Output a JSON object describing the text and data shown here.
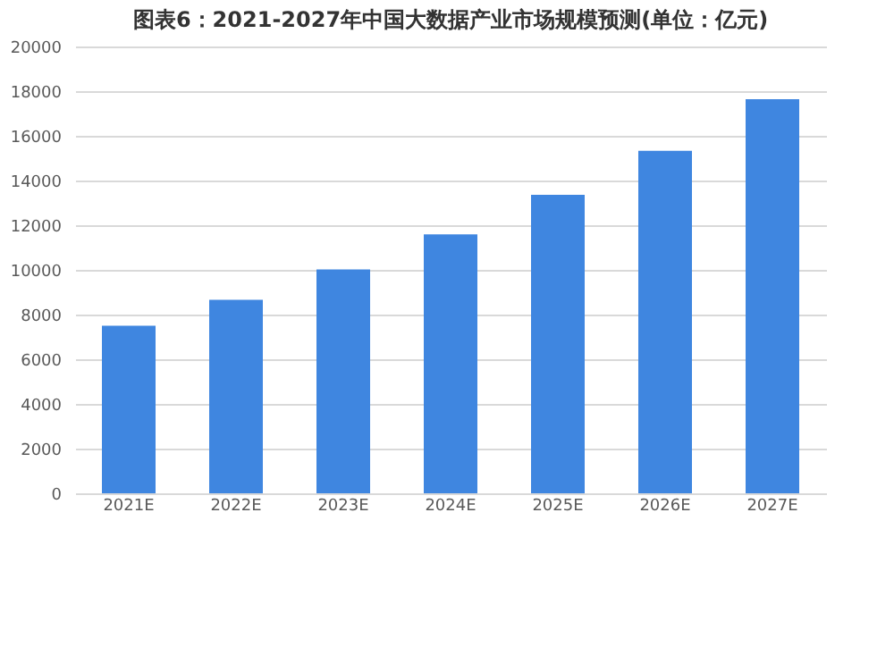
{
  "chart_data": {
    "type": "bar",
    "title": "图表6：2021-2027年中国大数据产业市场规模预测(单位：亿元)",
    "categories": [
      "2021E",
      "2022E",
      "2023E",
      "2024E",
      "2025E",
      "2026E",
      "2027E"
    ],
    "values": [
      7500,
      8660,
      10020,
      11590,
      13360,
      15330,
      17640
    ],
    "color": "#3f86e0",
    "ylim": [
      0,
      20000
    ],
    "yticks": [
      0,
      2000,
      4000,
      6000,
      8000,
      10000,
      12000,
      14000,
      16000,
      18000,
      20000
    ],
    "grid": "y"
  }
}
